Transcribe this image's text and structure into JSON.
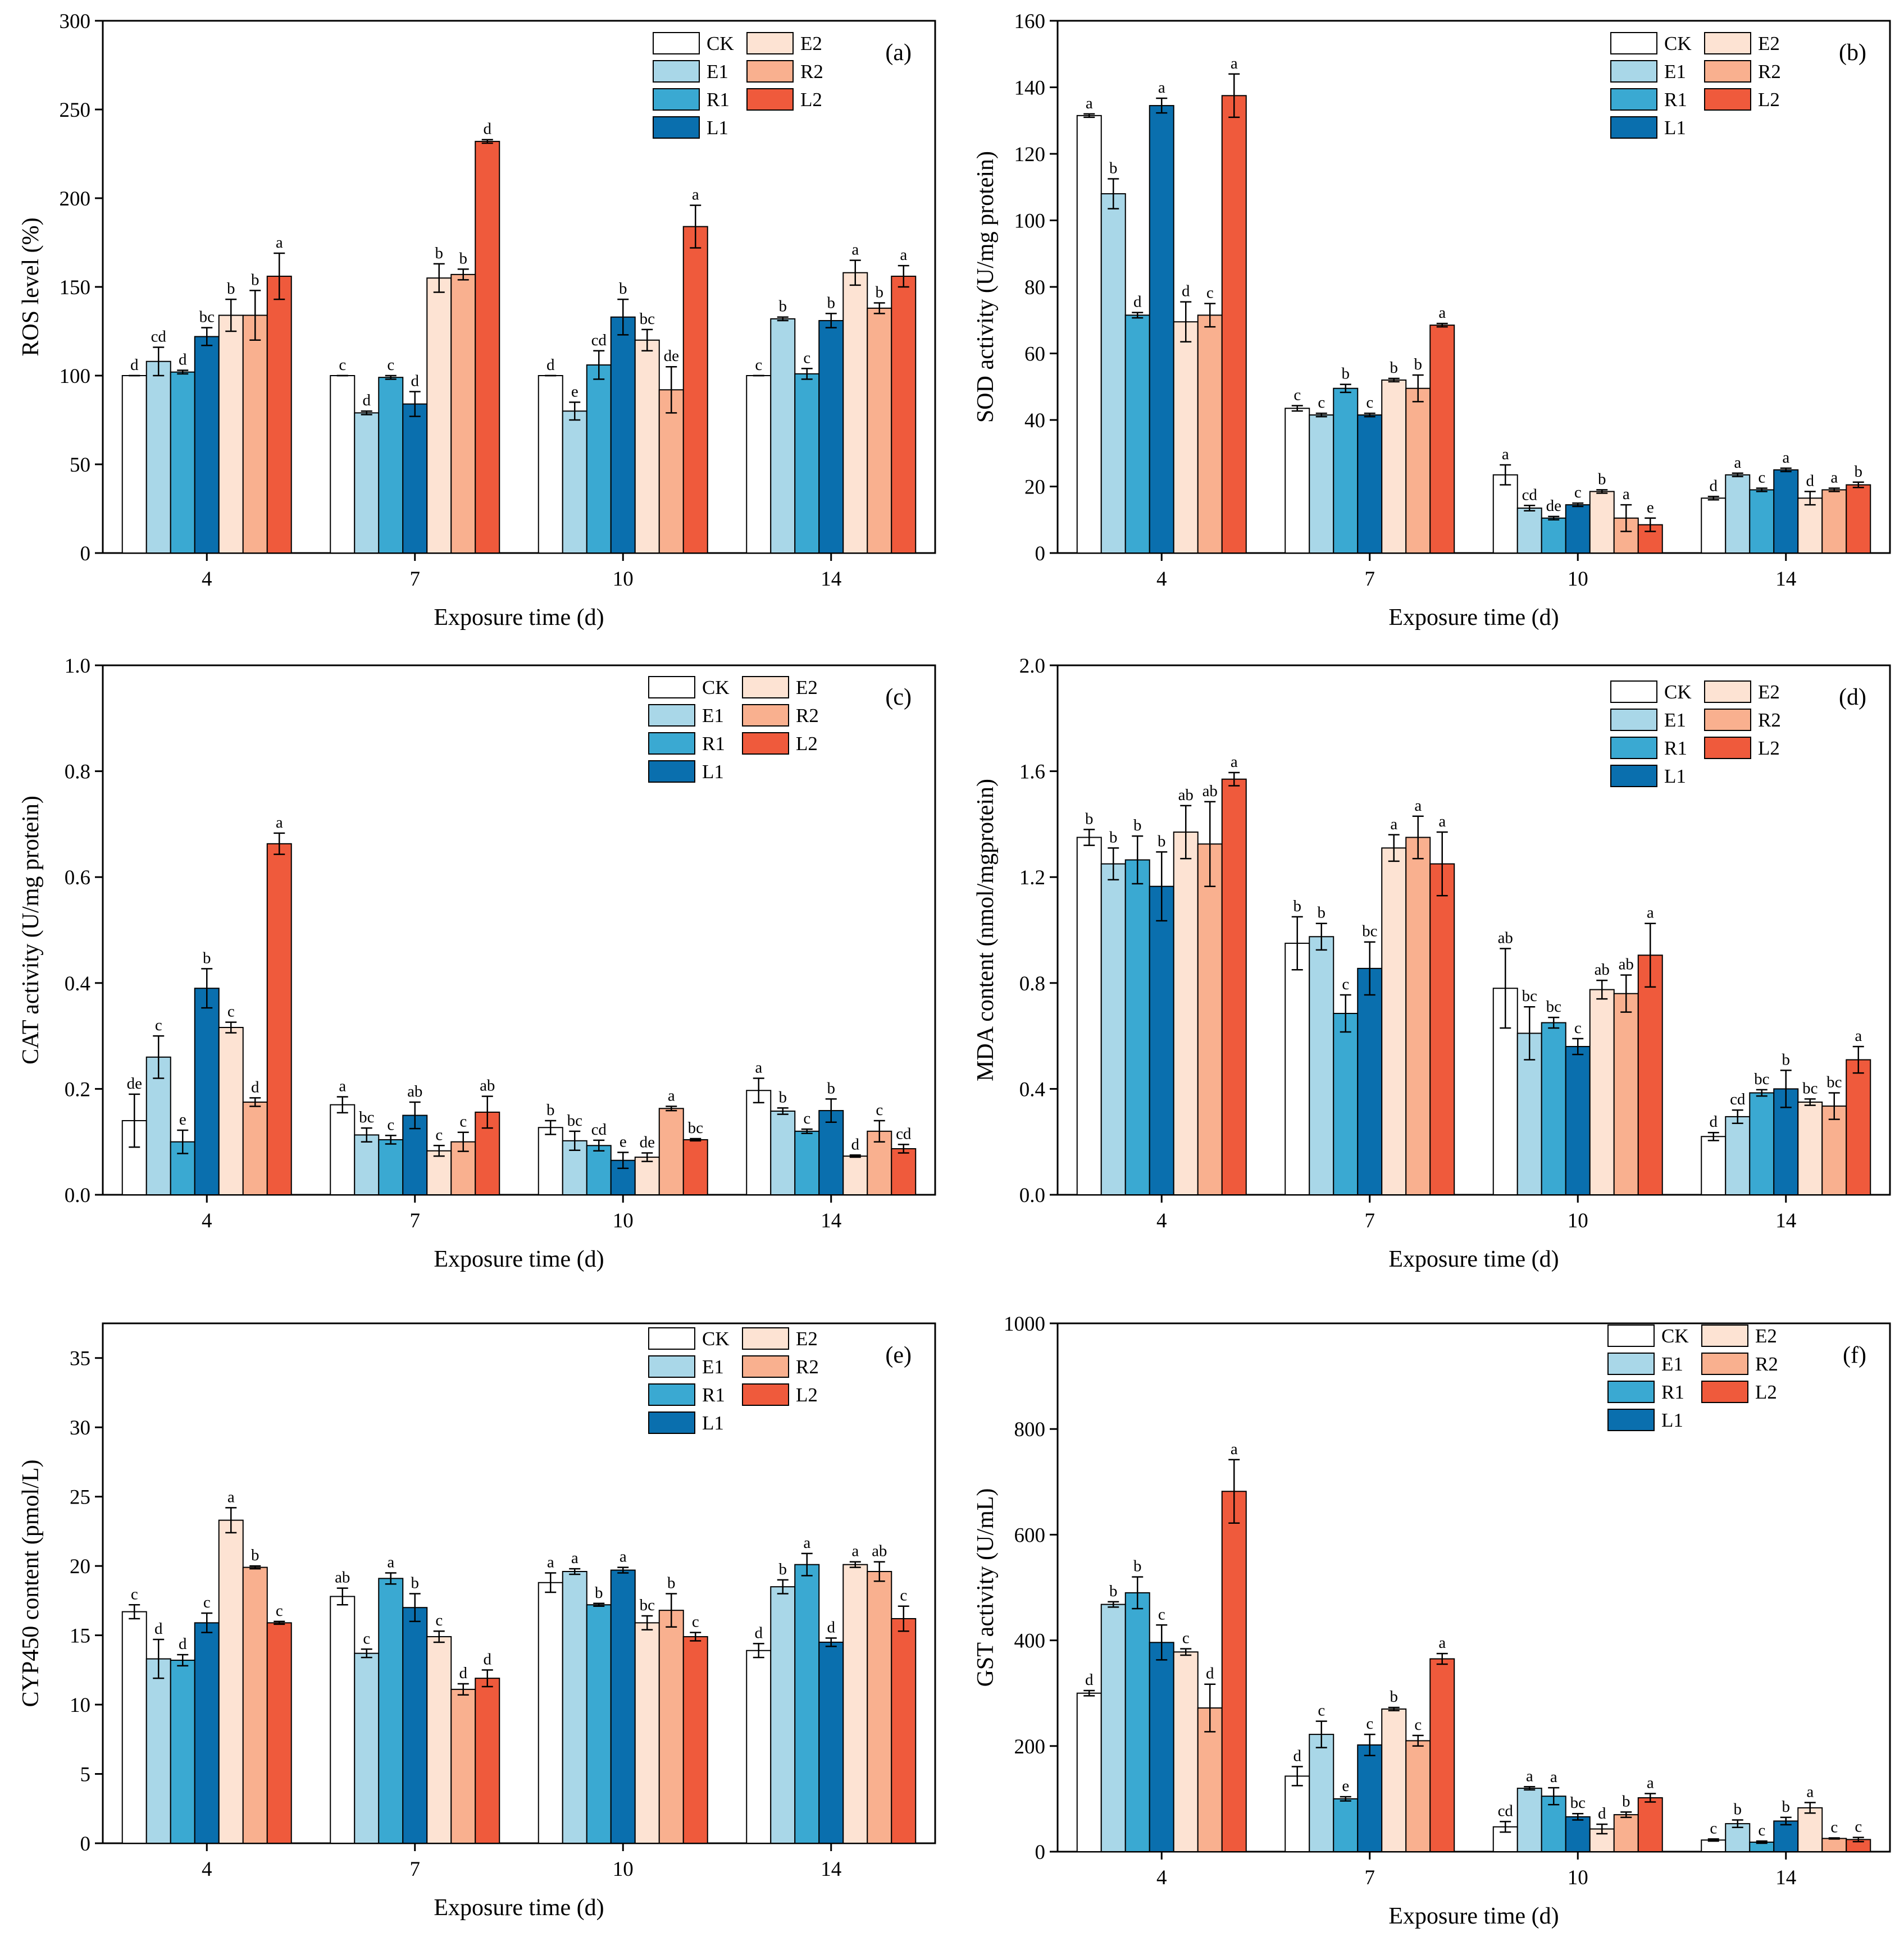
{
  "colors": {
    "CK": "#ffffff",
    "E1": "#a9d7e8",
    "R1": "#3aa9d2",
    "L1": "#0a6fae",
    "E2": "#fde3d3",
    "R2": "#f9b08f",
    "L2": "#ef5a3c"
  },
  "chart_data": [
    {
      "type": "bar",
      "panel": "(a)",
      "xlabel": "Exposure time (d)",
      "ylabel": "ROS level (%)",
      "ylim": [
        0,
        300
      ],
      "yticks": [
        0,
        50,
        100,
        150,
        200,
        250,
        300
      ],
      "ytick_labels": [
        "0",
        "50",
        "100",
        "150",
        "200",
        "250",
        "300"
      ],
      "categories": [
        "4",
        "7",
        "10",
        "14"
      ],
      "legend": [
        "CK",
        "E1",
        "R1",
        "L1",
        "E2",
        "R2",
        "L2"
      ],
      "series": [
        {
          "name": "CK",
          "values": [
            100,
            100,
            100,
            100
          ],
          "errors": [
            0,
            0,
            0,
            0
          ],
          "labels": [
            "d",
            "c",
            "d",
            "c"
          ]
        },
        {
          "name": "E1",
          "values": [
            108,
            79,
            80,
            132
          ],
          "errors": [
            8,
            1,
            5,
            1
          ],
          "labels": [
            "cd",
            "d",
            "e",
            "b"
          ]
        },
        {
          "name": "R1",
          "values": [
            102,
            99,
            106,
            101
          ],
          "errors": [
            1,
            1,
            8,
            3
          ],
          "labels": [
            "d",
            "c",
            "cd",
            "c"
          ]
        },
        {
          "name": "L1",
          "values": [
            122,
            84,
            133,
            131
          ],
          "errors": [
            5,
            7,
            10,
            4
          ],
          "labels": [
            "bc",
            "d",
            "b",
            "b"
          ]
        },
        {
          "name": "E2",
          "values": [
            134,
            155,
            120,
            158
          ],
          "errors": [
            9,
            8,
            6,
            7
          ],
          "labels": [
            "b",
            "b",
            "bc",
            "a"
          ]
        },
        {
          "name": "R2",
          "values": [
            134,
            157,
            92,
            138
          ],
          "errors": [
            14,
            3,
            13,
            3
          ],
          "labels": [
            "b",
            "b",
            "de",
            "b"
          ]
        },
        {
          "name": "L2",
          "values": [
            156,
            232,
            184,
            156
          ],
          "errors": [
            13,
            1,
            12,
            6
          ],
          "labels": [
            "a",
            "d",
            "a",
            "a"
          ]
        }
      ]
    },
    {
      "type": "bar",
      "panel": "(b)",
      "xlabel": "Exposure time (d)",
      "ylabel": "SOD activity (U/mg protein)",
      "ylim": [
        0,
        160
      ],
      "yticks": [
        0,
        20,
        40,
        60,
        80,
        100,
        120,
        140,
        160
      ],
      "ytick_labels": [
        "0",
        "20",
        "40",
        "60",
        "80",
        "100",
        "120",
        "140",
        "160"
      ],
      "categories": [
        "4",
        "7",
        "10",
        "14"
      ],
      "legend": [
        "CK",
        "E1",
        "R1",
        "L1",
        "E2",
        "R2",
        "L2"
      ],
      "series": [
        {
          "name": "CK",
          "values": [
            131.5,
            43.5,
            23.5,
            16.5
          ],
          "errors": [
            0.5,
            0.8,
            3,
            0.5
          ],
          "labels": [
            "a",
            "c",
            "a",
            "d"
          ]
        },
        {
          "name": "E1",
          "values": [
            108,
            41.5,
            13.5,
            23.5
          ],
          "errors": [
            4.5,
            0.5,
            0.8,
            0.5
          ],
          "labels": [
            "b",
            "c",
            "cd",
            "a"
          ]
        },
        {
          "name": "R1",
          "values": [
            71.5,
            49.5,
            10.5,
            19
          ],
          "errors": [
            0.8,
            1.2,
            0.5,
            0.5
          ],
          "labels": [
            "d",
            "b",
            "de",
            "c"
          ]
        },
        {
          "name": "L1",
          "values": [
            134.5,
            41.5,
            14.5,
            25
          ],
          "errors": [
            2.2,
            0.5,
            0.5,
            0.5
          ],
          "labels": [
            "a",
            "c",
            "c",
            "a"
          ]
        },
        {
          "name": "E2",
          "values": [
            69.5,
            52,
            18.5,
            16.5
          ],
          "errors": [
            6,
            0.5,
            0.5,
            2
          ],
          "labels": [
            "d",
            "b",
            "b",
            "d"
          ]
        },
        {
          "name": "R2",
          "values": [
            71.5,
            49.5,
            10.5,
            19
          ],
          "errors": [
            3.5,
            4,
            4,
            0.5
          ],
          "labels": [
            "c",
            "b",
            "a",
            "a"
          ]
        },
        {
          "name": "L2",
          "values": [
            137.5,
            68.5,
            8.5,
            20.5
          ],
          "errors": [
            6.5,
            0.5,
            2,
            0.8
          ],
          "labels": [
            "a",
            "a",
            "e",
            "b"
          ]
        }
      ]
    },
    {
      "type": "bar",
      "panel": "(c)",
      "xlabel": "Exposure time (d)",
      "ylabel": "CAT activity (U/mg protein)",
      "ylim": [
        0,
        1.0
      ],
      "yticks": [
        0,
        0.2,
        0.4,
        0.6,
        0.8,
        1.0
      ],
      "ytick_labels": [
        "0.0",
        "0.2",
        "0.4",
        "0.6",
        "0.8",
        "1.0"
      ],
      "categories": [
        "4",
        "7",
        "10",
        "14"
      ],
      "legend": [
        "CK",
        "E1",
        "R1",
        "L1",
        "E2",
        "R2",
        "L2"
      ],
      "series": [
        {
          "name": "CK",
          "values": [
            0.14,
            0.17,
            0.127,
            0.197
          ],
          "errors": [
            0.05,
            0.015,
            0.013,
            0.023
          ],
          "labels": [
            "de",
            "a",
            "b",
            "a"
          ]
        },
        {
          "name": "E1",
          "values": [
            0.26,
            0.113,
            0.102,
            0.158
          ],
          "errors": [
            0.04,
            0.013,
            0.018,
            0.006
          ],
          "labels": [
            "c",
            "bc",
            "bc",
            "b"
          ]
        },
        {
          "name": "R1",
          "values": [
            0.1,
            0.104,
            0.093,
            0.12
          ],
          "errors": [
            0.022,
            0.008,
            0.01,
            0.004
          ],
          "labels": [
            "e",
            "c",
            "cd",
            "c"
          ]
        },
        {
          "name": "L1",
          "values": [
            0.39,
            0.15,
            0.065,
            0.159
          ],
          "errors": [
            0.037,
            0.025,
            0.015,
            0.022
          ],
          "labels": [
            "b",
            "ab",
            "e",
            "b"
          ]
        },
        {
          "name": "E2",
          "values": [
            0.316,
            0.083,
            0.071,
            0.073
          ],
          "errors": [
            0.01,
            0.01,
            0.008,
            0.002
          ],
          "labels": [
            "c",
            "c",
            "de",
            "d"
          ]
        },
        {
          "name": "R2",
          "values": [
            0.175,
            0.1,
            0.163,
            0.12
          ],
          "errors": [
            0.008,
            0.018,
            0.004,
            0.02
          ],
          "labels": [
            "d",
            "c",
            "a",
            "c"
          ]
        },
        {
          "name": "L2",
          "values": [
            0.663,
            0.156,
            0.104,
            0.087
          ],
          "errors": [
            0.02,
            0.03,
            0.002,
            0.008
          ],
          "labels": [
            "a",
            "ab",
            "bc",
            "cd"
          ]
        }
      ]
    },
    {
      "type": "bar",
      "panel": "(d)",
      "xlabel": "Exposure time (d)",
      "ylabel": "MDA content (nmol/mgprotein)",
      "ylim": [
        0,
        2.0
      ],
      "yticks": [
        0,
        0.4,
        0.8,
        1.2,
        1.6,
        2.0
      ],
      "ytick_labels": [
        "0.0",
        "0.4",
        "0.8",
        "1.2",
        "1.6",
        "2.0"
      ],
      "categories": [
        "4",
        "7",
        "10",
        "14"
      ],
      "legend": [
        "CK",
        "E1",
        "R1",
        "L1",
        "E2",
        "R2",
        "L2"
      ],
      "series": [
        {
          "name": "CK",
          "values": [
            1.35,
            0.95,
            0.78,
            0.22
          ],
          "errors": [
            0.03,
            0.1,
            0.15,
            0.015
          ],
          "labels": [
            "b",
            "b",
            "ab",
            "d"
          ]
        },
        {
          "name": "E1",
          "values": [
            1.25,
            0.975,
            0.61,
            0.295
          ],
          "errors": [
            0.06,
            0.05,
            0.1,
            0.025
          ],
          "labels": [
            "b",
            "b",
            "bc",
            "cd"
          ]
        },
        {
          "name": "R1",
          "values": [
            1.265,
            0.685,
            0.65,
            0.385
          ],
          "errors": [
            0.09,
            0.07,
            0.02,
            0.012
          ],
          "labels": [
            "b",
            "c",
            "bc",
            "bc"
          ]
        },
        {
          "name": "L1",
          "values": [
            1.165,
            0.855,
            0.56,
            0.4
          ],
          "errors": [
            0.13,
            0.1,
            0.03,
            0.07
          ],
          "labels": [
            "b",
            "bc",
            "c",
            "b"
          ]
        },
        {
          "name": "E2",
          "values": [
            1.37,
            1.31,
            0.775,
            0.35
          ],
          "errors": [
            0.1,
            0.05,
            0.035,
            0.012
          ],
          "labels": [
            "ab",
            "a",
            "ab",
            "bc"
          ]
        },
        {
          "name": "R2",
          "values": [
            1.325,
            1.35,
            0.76,
            0.335
          ],
          "errors": [
            0.16,
            0.08,
            0.07,
            0.05
          ],
          "labels": [
            "ab",
            "a",
            "ab",
            "bc"
          ]
        },
        {
          "name": "L2",
          "values": [
            1.57,
            1.25,
            0.905,
            0.51
          ],
          "errors": [
            0.025,
            0.12,
            0.12,
            0.05
          ],
          "labels": [
            "a",
            "a",
            "a",
            "a"
          ]
        }
      ]
    },
    {
      "type": "bar",
      "panel": "(e)",
      "xlabel": "Exposure time (d)",
      "ylabel": "CYP450 content (pmol/L)",
      "ylim": [
        0,
        37.5
      ],
      "yticks": [
        0,
        5,
        10,
        15,
        20,
        25,
        30,
        35
      ],
      "ytick_labels": [
        "0",
        "5",
        "10",
        "15",
        "20",
        "25",
        "30",
        "35"
      ],
      "categories": [
        "4",
        "7",
        "10",
        "14"
      ],
      "legend": [
        "CK",
        "E1",
        "R1",
        "L1",
        "E2",
        "R2",
        "L2"
      ],
      "series": [
        {
          "name": "CK",
          "values": [
            16.7,
            17.8,
            18.8,
            13.9
          ],
          "errors": [
            0.5,
            0.6,
            0.7,
            0.5
          ],
          "labels": [
            "c",
            "ab",
            "a",
            "d"
          ]
        },
        {
          "name": "E1",
          "values": [
            13.3,
            13.7,
            19.6,
            18.5
          ],
          "errors": [
            1.4,
            0.3,
            0.2,
            0.5
          ],
          "labels": [
            "d",
            "c",
            "a",
            "b"
          ]
        },
        {
          "name": "R1",
          "values": [
            13.2,
            19.1,
            17.2,
            20.1
          ],
          "errors": [
            0.4,
            0.4,
            0.1,
            0.8
          ],
          "labels": [
            "d",
            "a",
            "b",
            "a"
          ]
        },
        {
          "name": "L1",
          "values": [
            15.9,
            17.0,
            19.7,
            14.5
          ],
          "errors": [
            0.7,
            1.0,
            0.2,
            0.3
          ],
          "labels": [
            "c",
            "b",
            "a",
            "d"
          ]
        },
        {
          "name": "E2",
          "values": [
            23.3,
            14.9,
            15.9,
            20.1
          ],
          "errors": [
            0.9,
            0.4,
            0.5,
            0.2
          ],
          "labels": [
            "a",
            "c",
            "bc",
            "a"
          ]
        },
        {
          "name": "R2",
          "values": [
            19.9,
            11.1,
            16.8,
            19.6
          ],
          "errors": [
            0.1,
            0.4,
            1.2,
            0.7
          ],
          "labels": [
            "b",
            "d",
            "b",
            "ab"
          ]
        },
        {
          "name": "L2",
          "values": [
            15.9,
            11.9,
            14.9,
            16.2
          ],
          "errors": [
            0.1,
            0.6,
            0.3,
            0.9
          ],
          "labels": [
            "c",
            "d",
            "c",
            "c"
          ]
        }
      ]
    },
    {
      "type": "bar",
      "panel": "(f)",
      "xlabel": "Exposure time (d)",
      "ylabel": "GST activity (U/mL)",
      "ylim": [
        0,
        1000
      ],
      "yticks": [
        0,
        200,
        400,
        600,
        800,
        1000
      ],
      "ytick_labels": [
        "0",
        "200",
        "400",
        "600",
        "800",
        "1000"
      ],
      "categories": [
        "4",
        "7",
        "10",
        "14"
      ],
      "legend": [
        "CK",
        "E1",
        "R1",
        "L1",
        "E2",
        "R2",
        "L2"
      ],
      "series": [
        {
          "name": "CK",
          "values": [
            300,
            143,
            47,
            22
          ],
          "errors": [
            5,
            18,
            10,
            2
          ],
          "labels": [
            "d",
            "d",
            "cd",
            "c"
          ]
        },
        {
          "name": "E1",
          "values": [
            468,
            222,
            120,
            53
          ],
          "errors": [
            5,
            25,
            3,
            7
          ],
          "labels": [
            "b",
            "c",
            "a",
            "b"
          ]
        },
        {
          "name": "R1",
          "values": [
            490,
            100,
            105,
            18
          ],
          "errors": [
            30,
            4,
            16,
            2
          ],
          "labels": [
            "b",
            "e",
            "a",
            "c"
          ]
        },
        {
          "name": "L1",
          "values": [
            396,
            202,
            66,
            58
          ],
          "errors": [
            33,
            20,
            6,
            7
          ],
          "labels": [
            "c",
            "c",
            "bc",
            "b"
          ]
        },
        {
          "name": "E2",
          "values": [
            378,
            270,
            43,
            83
          ],
          "errors": [
            6,
            3,
            9,
            10
          ],
          "labels": [
            "c",
            "b",
            "d",
            "a"
          ]
        },
        {
          "name": "R2",
          "values": [
            272,
            210,
            70,
            25
          ],
          "errors": [
            45,
            10,
            5,
            1
          ],
          "labels": [
            "d",
            "c",
            "b",
            "c"
          ]
        },
        {
          "name": "L2",
          "values": [
            682,
            365,
            102,
            23
          ],
          "errors": [
            60,
            10,
            8,
            4
          ],
          "labels": [
            "a",
            "a",
            "a",
            "c"
          ]
        }
      ]
    }
  ]
}
